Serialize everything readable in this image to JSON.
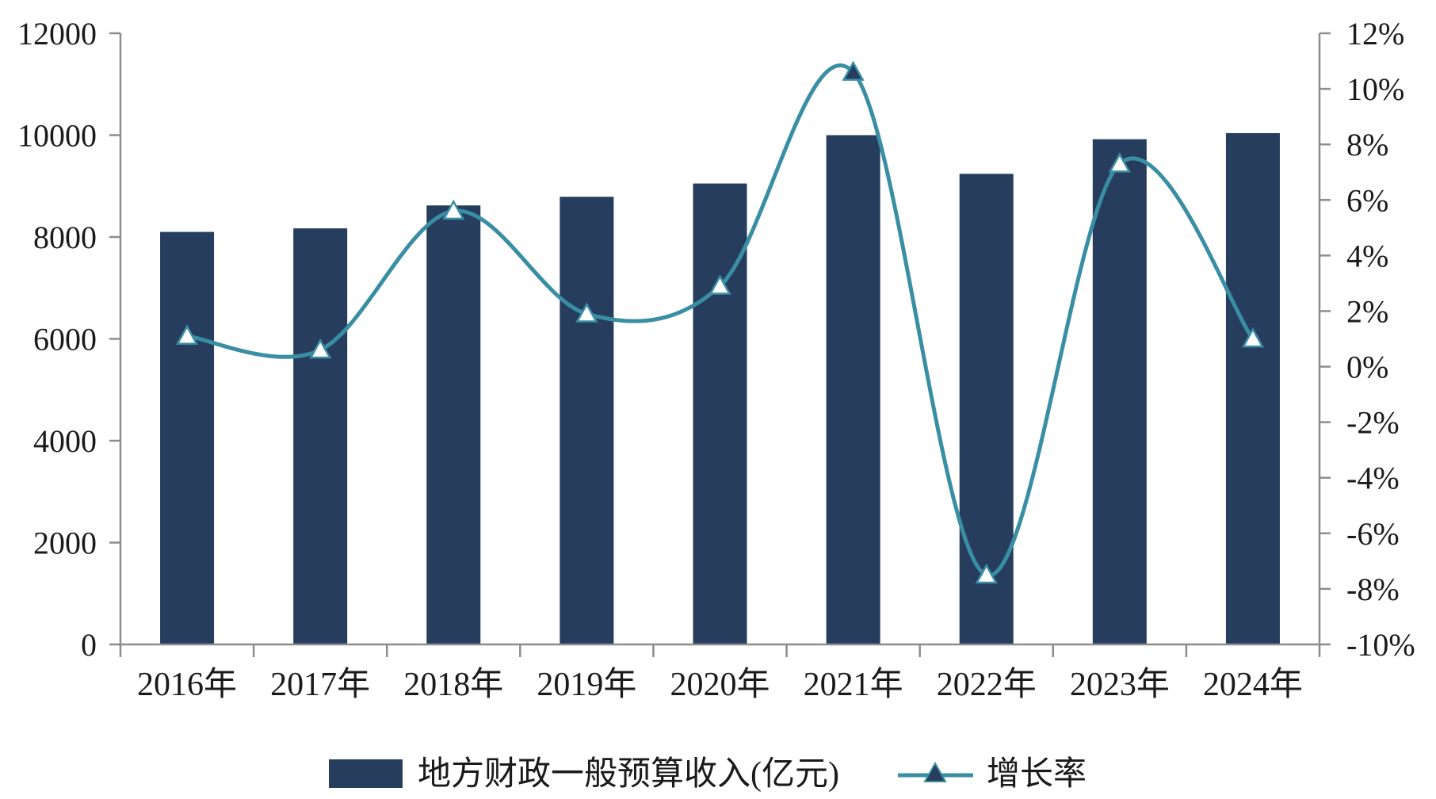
{
  "chart_data": {
    "type": "bar",
    "categories": [
      "2016年",
      "2017年",
      "2018年",
      "2019年",
      "2020年",
      "2021年",
      "2022年",
      "2023年",
      "2024年"
    ],
    "series": [
      {
        "name": "地方财政一般预算收入(亿元)",
        "type": "bar",
        "axis": "left",
        "values": [
          8100,
          8170,
          8620,
          8790,
          9050,
          10000,
          9240,
          9920,
          10040
        ],
        "color": "#263d5e"
      },
      {
        "name": "增长率",
        "type": "line",
        "axis": "right",
        "values": [
          1.1,
          0.6,
          5.6,
          1.9,
          2.9,
          10.6,
          -7.5,
          7.3,
          1.0
        ],
        "color": "#3a8ea4",
        "marker": "triangle"
      }
    ],
    "yaxis_left": {
      "ylim": [
        0,
        12000
      ],
      "ticks": [
        0,
        2000,
        4000,
        6000,
        8000,
        10000,
        12000
      ],
      "tick_labels": [
        "0",
        "2000",
        "4000",
        "6000",
        "8000",
        "10000",
        "12000"
      ]
    },
    "yaxis_right": {
      "ylim": [
        -10,
        12
      ],
      "ticks": [
        -10,
        -8,
        -6,
        -4,
        -2,
        0,
        2,
        4,
        6,
        8,
        10,
        12
      ],
      "tick_labels": [
        "-10%",
        "-8%",
        "-6%",
        "-4%",
        "-2%",
        "0%",
        "2%",
        "4%",
        "6%",
        "8%",
        "10%",
        "12%"
      ]
    },
    "title": "",
    "xlabel": "",
    "ylabel": "",
    "grid": false,
    "legend_position": "bottom"
  }
}
